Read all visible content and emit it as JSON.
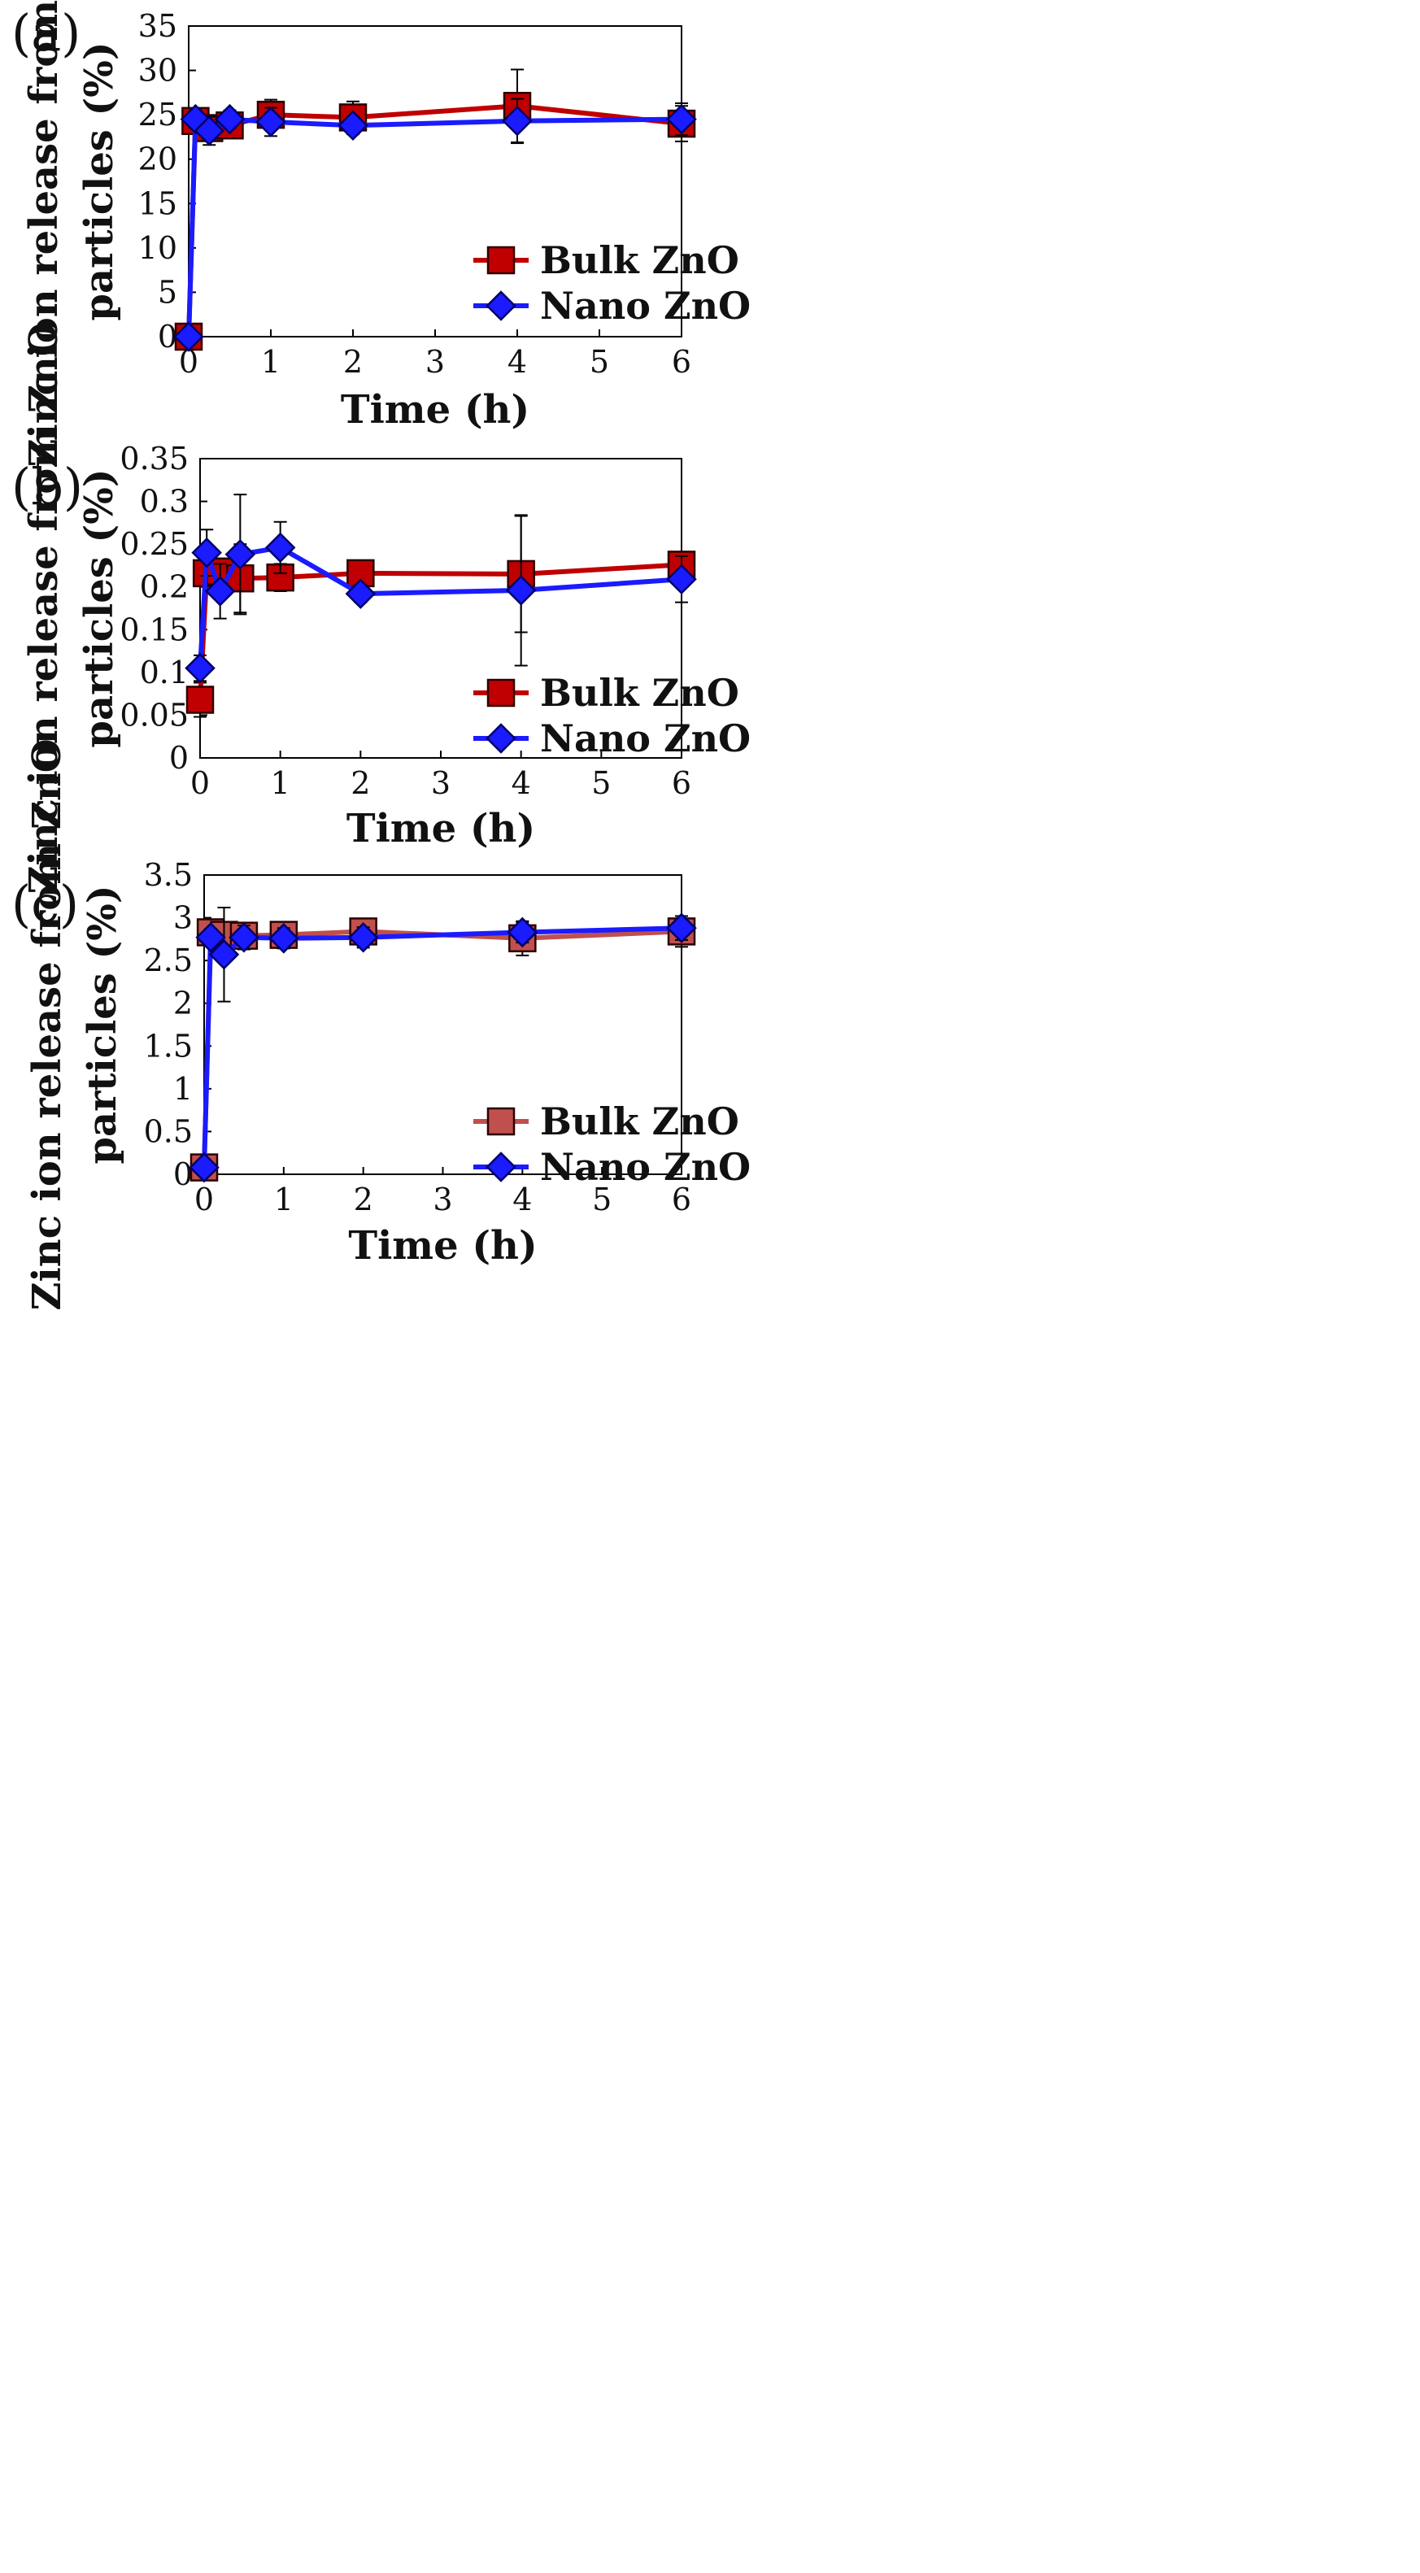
{
  "figure": {
    "colors": {
      "bulk": "#c00000",
      "bulk_muted": "#c0504d",
      "nano": "#1b1bff",
      "axis": "#000000"
    }
  },
  "chart_data": [
    {
      "type": "line",
      "panel_label": "(a)",
      "panel_letter": "a",
      "xlabel": "Time (h)",
      "ylabel_line1": "Zinc ion release from ZnO",
      "ylabel_line2": "particles (%)",
      "xlim": [
        0,
        6
      ],
      "ylim": [
        0,
        35
      ],
      "xticks": [
        0,
        1,
        2,
        3,
        4,
        5,
        6
      ],
      "yticks": [
        "0",
        "5",
        "10",
        "15",
        "20",
        "25",
        "30",
        "35"
      ],
      "legend_position": "bottom-right",
      "series": [
        {
          "name": "Bulk ZnO",
          "marker": "square",
          "color": "#c00000",
          "x": [
            0,
            0.083,
            0.25,
            0.5,
            1,
            2,
            4,
            6
          ],
          "y": [
            0,
            24.3,
            23.5,
            23.8,
            25.0,
            24.7,
            26.0,
            24.0
          ],
          "err": [
            0,
            1.2,
            1.0,
            1.0,
            1.7,
            1.8,
            4.1,
            2.0
          ]
        },
        {
          "name": "Nano ZnO",
          "marker": "diamond",
          "color": "#1b1bff",
          "x": [
            0,
            0.083,
            0.25,
            0.5,
            1,
            2,
            4,
            6
          ],
          "y": [
            0,
            24.5,
            23.2,
            24.5,
            24.2,
            23.8,
            24.3,
            24.5
          ],
          "err": [
            0,
            1.0,
            1.6,
            1.0,
            1.6,
            1.0,
            2.5,
            1.8
          ]
        }
      ]
    },
    {
      "type": "line",
      "panel_label": "(b)",
      "panel_letter": "b",
      "xlabel": "Time (h)",
      "ylabel_line1": "Zinc ion release from ZnO",
      "ylabel_line2": "particles (%)",
      "xlim": [
        0,
        6
      ],
      "ylim": [
        0,
        0.35
      ],
      "xticks": [
        0,
        1,
        2,
        3,
        4,
        5,
        6
      ],
      "yticks": [
        "0",
        "0.05",
        "0.1",
        "0.15",
        "0.2",
        "0.25",
        "0.3",
        "0.35"
      ],
      "legend_position": "bottom-right",
      "series": [
        {
          "name": "Bulk ZnO",
          "marker": "square",
          "color": "#c00000",
          "x": [
            0,
            0.083,
            0.25,
            0.5,
            1,
            2,
            4,
            6
          ],
          "y": [
            0.068,
            0.216,
            0.218,
            0.21,
            0.211,
            0.216,
            0.215,
            0.226
          ],
          "err": [
            0.02,
            0.01,
            0.01,
            0.04,
            0.016,
            0.012,
            0.068,
            0.014
          ]
        },
        {
          "name": "Nano ZnO",
          "marker": "diamond",
          "color": "#1b1bff",
          "x": [
            0,
            0.083,
            0.25,
            0.5,
            1,
            2,
            4,
            6
          ],
          "y": [
            0.105,
            0.24,
            0.195,
            0.238,
            0.246,
            0.192,
            0.196,
            0.209
          ],
          "err": [
            0.015,
            0.027,
            0.032,
            0.07,
            0.03,
            0.01,
            0.088,
            0.027
          ]
        }
      ]
    },
    {
      "type": "line",
      "panel_label": "(c)",
      "panel_letter": "c",
      "xlabel": "Time (h)",
      "ylabel_line1": "Zinc ion release from ZnO",
      "ylabel_line2": "particles (%)",
      "xlim": [
        0,
        6
      ],
      "ylim": [
        0,
        3.5
      ],
      "xticks": [
        0,
        1,
        2,
        3,
        4,
        5,
        6
      ],
      "yticks": [
        "0",
        "0.5",
        "1",
        "1.5",
        "2",
        "2.5",
        "3",
        "3.5"
      ],
      "legend_position": "bottom-right",
      "series": [
        {
          "name": "Bulk ZnO",
          "marker": "square",
          "color": "#c0504d",
          "x": [
            0,
            0.083,
            0.25,
            0.5,
            1,
            2,
            4,
            6
          ],
          "y": [
            0.08,
            2.83,
            2.8,
            2.79,
            2.8,
            2.84,
            2.76,
            2.84
          ],
          "err": [
            0,
            0.13,
            0.12,
            0.12,
            0.1,
            0.14,
            0.2,
            0.18
          ]
        },
        {
          "name": "Nano ZnO",
          "marker": "diamond",
          "color": "#1b1bff",
          "x": [
            0,
            0.083,
            0.25,
            0.5,
            1,
            2,
            4,
            6
          ],
          "y": [
            0.08,
            2.77,
            2.57,
            2.77,
            2.76,
            2.77,
            2.83,
            2.88
          ],
          "err": [
            0,
            0.1,
            0.55,
            0.14,
            0.12,
            0.12,
            0.12,
            0.14
          ]
        }
      ]
    }
  ]
}
